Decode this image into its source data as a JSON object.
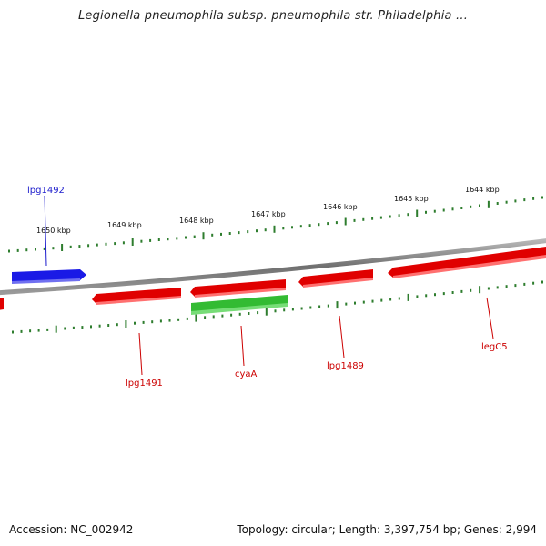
{
  "title": "Legionella pneumophila subsp. pneumophila str. Philadelphia ...",
  "footer": {
    "accession": "Accession: NC_002942",
    "topology": "Topology: circular; Length: 3,397,754 bp; Genes: 2,994"
  },
  "colors": {
    "backbone": "#8a8a8a",
    "forward_gene": "#e00000",
    "highlight_gene": "#1a1ae6",
    "reverse_gene": "#33bb33",
    "ticks": "#2e7d2e",
    "forward_label": "#cc0000",
    "highlight_label": "#1a1acc"
  },
  "ruler_labels": [
    "1650 kbp",
    "1649 kbp",
    "1648 kbp",
    "1647 kbp",
    "1646 kbp",
    "1645 kbp",
    "1644 kbp"
  ],
  "genes": [
    {
      "name": "lpg1492",
      "strand": "+",
      "highlight": true
    },
    {
      "name": "lpg1491",
      "strand": "+"
    },
    {
      "name": "cyaA",
      "strand": "-"
    },
    {
      "name": "lpg1489",
      "strand": "+"
    },
    {
      "name": "legC5",
      "strand": "+"
    }
  ]
}
